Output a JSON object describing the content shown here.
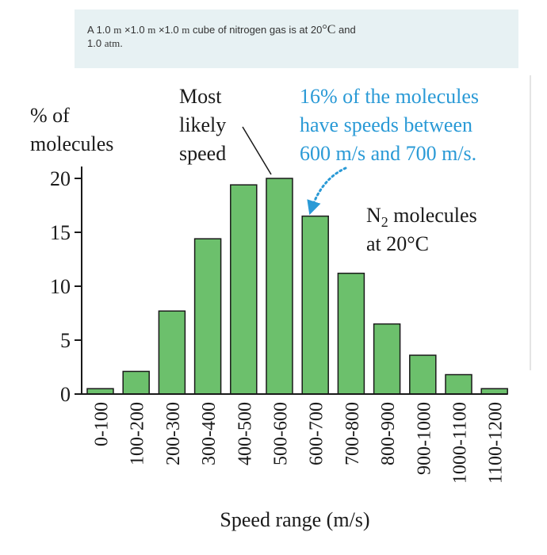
{
  "problem": {
    "line1_a": "A 1.0 ",
    "unit_m": "m",
    "times": " ×1.0 ",
    "line1_b": " cube of nitrogen gas is at 20",
    "deg_c": "°C",
    "line1_c": " and",
    "line2_a": "1.0 ",
    "unit_atm": "atm",
    "line2_b": "."
  },
  "chart_data": {
    "type": "bar",
    "ylabel": [
      "% of",
      "molecules"
    ],
    "xlabel": "Speed range (m/s)",
    "categories": [
      "0-100",
      "100-200",
      "200-300",
      "300-400",
      "400-500",
      "500-600",
      "600-700",
      "700-800",
      "800-900",
      "900-1000",
      "1000-1100",
      "1100-1200"
    ],
    "values": [
      0.5,
      2.1,
      7.7,
      14.4,
      19.4,
      20.0,
      16.5,
      11.2,
      6.5,
      3.6,
      1.8,
      0.5
    ],
    "ylim": [
      0,
      20
    ],
    "yticks": [
      0,
      5,
      10,
      15,
      20
    ],
    "bar_color": "#6cc06c",
    "bar_stroke": "#1a1a1a",
    "annotations": {
      "most_likely": [
        "Most",
        "likely",
        "speed"
      ],
      "callout": [
        "16% of the molecules",
        "have speeds between",
        "600 m/s and 700 m/s."
      ],
      "callout_color": "#2a9ad6",
      "series_label": {
        "line1_prefix": "N",
        "line1_sub": "2",
        "line1_suffix": " molecules",
        "line2": "at 20°C"
      }
    }
  }
}
